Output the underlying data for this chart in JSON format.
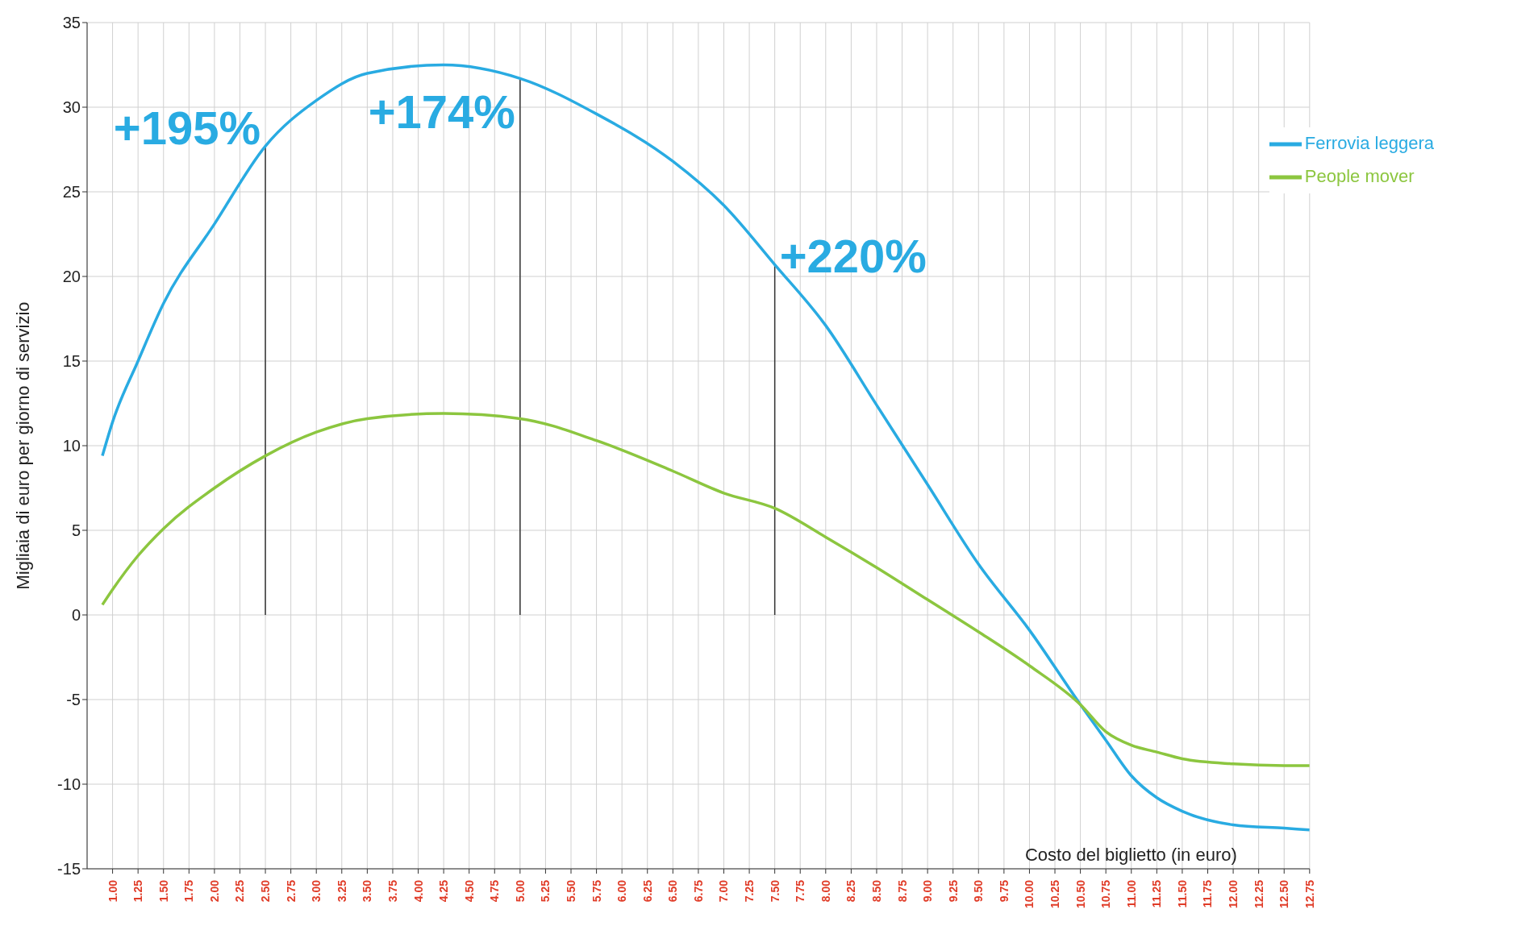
{
  "chart_data": {
    "type": "line",
    "xlabel": "Costo del biglietto (in euro)",
    "ylabel": "Migliaia di euro per giorno di servizio",
    "x": [
      0.9,
      1,
      1.25,
      1.5,
      2,
      2.5,
      3,
      3.5,
      4.25,
      5,
      5.75,
      6.5,
      7,
      7.5,
      8,
      8.5,
      9,
      9.5,
      10,
      10.5,
      10.75,
      11,
      11.25,
      11.5,
      12,
      12.5,
      12.75
    ],
    "series": [
      {
        "name": "Ferrovia leggera",
        "color": "#29abe2",
        "values": [
          9.4,
          11.4,
          15,
          18.4,
          23.1,
          27.7,
          30.4,
          32,
          32.5,
          31.7,
          29.6,
          26.8,
          24.2,
          20.7,
          17.1,
          12.4,
          7.7,
          3,
          -0.9,
          -5.3,
          -7.4,
          -9.5,
          -10.8,
          -11.6,
          -12.4,
          -12.6,
          -12.7
        ]
      },
      {
        "name": "People mover",
        "color": "#8cc63f",
        "values": [
          0.6,
          1.5,
          3.5,
          5.1,
          7.5,
          9.4,
          10.8,
          11.6,
          11.9,
          11.6,
          10.3,
          8.5,
          7.2,
          6.3,
          4.6,
          2.8,
          0.9,
          -1,
          -3,
          -5.3,
          -6.9,
          -7.7,
          -8.1,
          -8.5,
          -8.8,
          -8.9,
          -8.9
        ]
      }
    ],
    "annotations": [
      {
        "text": "+195%",
        "x": 2.5,
        "y": 27.7
      },
      {
        "text": "+174%",
        "x": 5,
        "y": 31.7
      },
      {
        "text": "+220%",
        "x": 7.5,
        "y": 20.7
      }
    ],
    "xlim": [
      0.75,
      12.75
    ],
    "xticks": [
      {
        "value": 1,
        "label": "1.00"
      },
      {
        "value": 1.25,
        "label": "1.25"
      },
      {
        "value": 1.5,
        "label": "1.50"
      },
      {
        "value": 1.75,
        "label": "1.75"
      },
      {
        "value": 2,
        "label": "2.00"
      },
      {
        "value": 2.25,
        "label": "2.25"
      },
      {
        "value": 2.5,
        "label": "2.50"
      },
      {
        "value": 2.75,
        "label": "2.75"
      },
      {
        "value": 3,
        "label": "3.00"
      },
      {
        "value": 3.25,
        "label": "3.25"
      },
      {
        "value": 3.5,
        "label": "3.50"
      },
      {
        "value": 3.75,
        "label": "3.75"
      },
      {
        "value": 4,
        "label": "4.00"
      },
      {
        "value": 4.25,
        "label": "4.25"
      },
      {
        "value": 4.5,
        "label": "4.50"
      },
      {
        "value": 4.75,
        "label": "4.75"
      },
      {
        "value": 5,
        "label": "5.00"
      },
      {
        "value": 5.25,
        "label": "5.25"
      },
      {
        "value": 5.5,
        "label": "5.50"
      },
      {
        "value": 5.75,
        "label": "5.75"
      },
      {
        "value": 6,
        "label": "6.00"
      },
      {
        "value": 6.25,
        "label": "6.25"
      },
      {
        "value": 6.5,
        "label": "6.50"
      },
      {
        "value": 6.75,
        "label": "6.75"
      },
      {
        "value": 7,
        "label": "7.00"
      },
      {
        "value": 7.25,
        "label": "7.25"
      },
      {
        "value": 7.5,
        "label": "7.50"
      },
      {
        "value": 7.75,
        "label": "7.75"
      },
      {
        "value": 8,
        "label": "8.00"
      },
      {
        "value": 8.25,
        "label": "8.25"
      },
      {
        "value": 8.5,
        "label": "8.50"
      },
      {
        "value": 8.75,
        "label": "8.75"
      },
      {
        "value": 9,
        "label": "9.00"
      },
      {
        "value": 9.25,
        "label": "9.25"
      },
      {
        "value": 9.5,
        "label": "9.50"
      },
      {
        "value": 9.75,
        "label": "9.75"
      },
      {
        "value": 10,
        "label": "10.00"
      },
      {
        "value": 10.25,
        "label": "10.25"
      },
      {
        "value": 10.5,
        "label": "10.50"
      },
      {
        "value": 10.75,
        "label": "10.75"
      },
      {
        "value": 11,
        "label": "11.00"
      },
      {
        "value": 11.25,
        "label": "11.25"
      },
      {
        "value": 11.5,
        "label": "11.50"
      },
      {
        "value": 11.75,
        "label": "11.75"
      },
      {
        "value": 12,
        "label": "12.00"
      },
      {
        "value": 12.25,
        "label": "12.25"
      },
      {
        "value": 12.5,
        "label": "12.50"
      },
      {
        "value": 12.75,
        "label": "12.75"
      }
    ],
    "ylim": [
      -15,
      35
    ],
    "yticks": [
      -15,
      -10,
      -5,
      0,
      5,
      10,
      15,
      20,
      25,
      30,
      35
    ],
    "grid": true,
    "legend": "top right",
    "marker": "none",
    "line_style": "solid"
  }
}
